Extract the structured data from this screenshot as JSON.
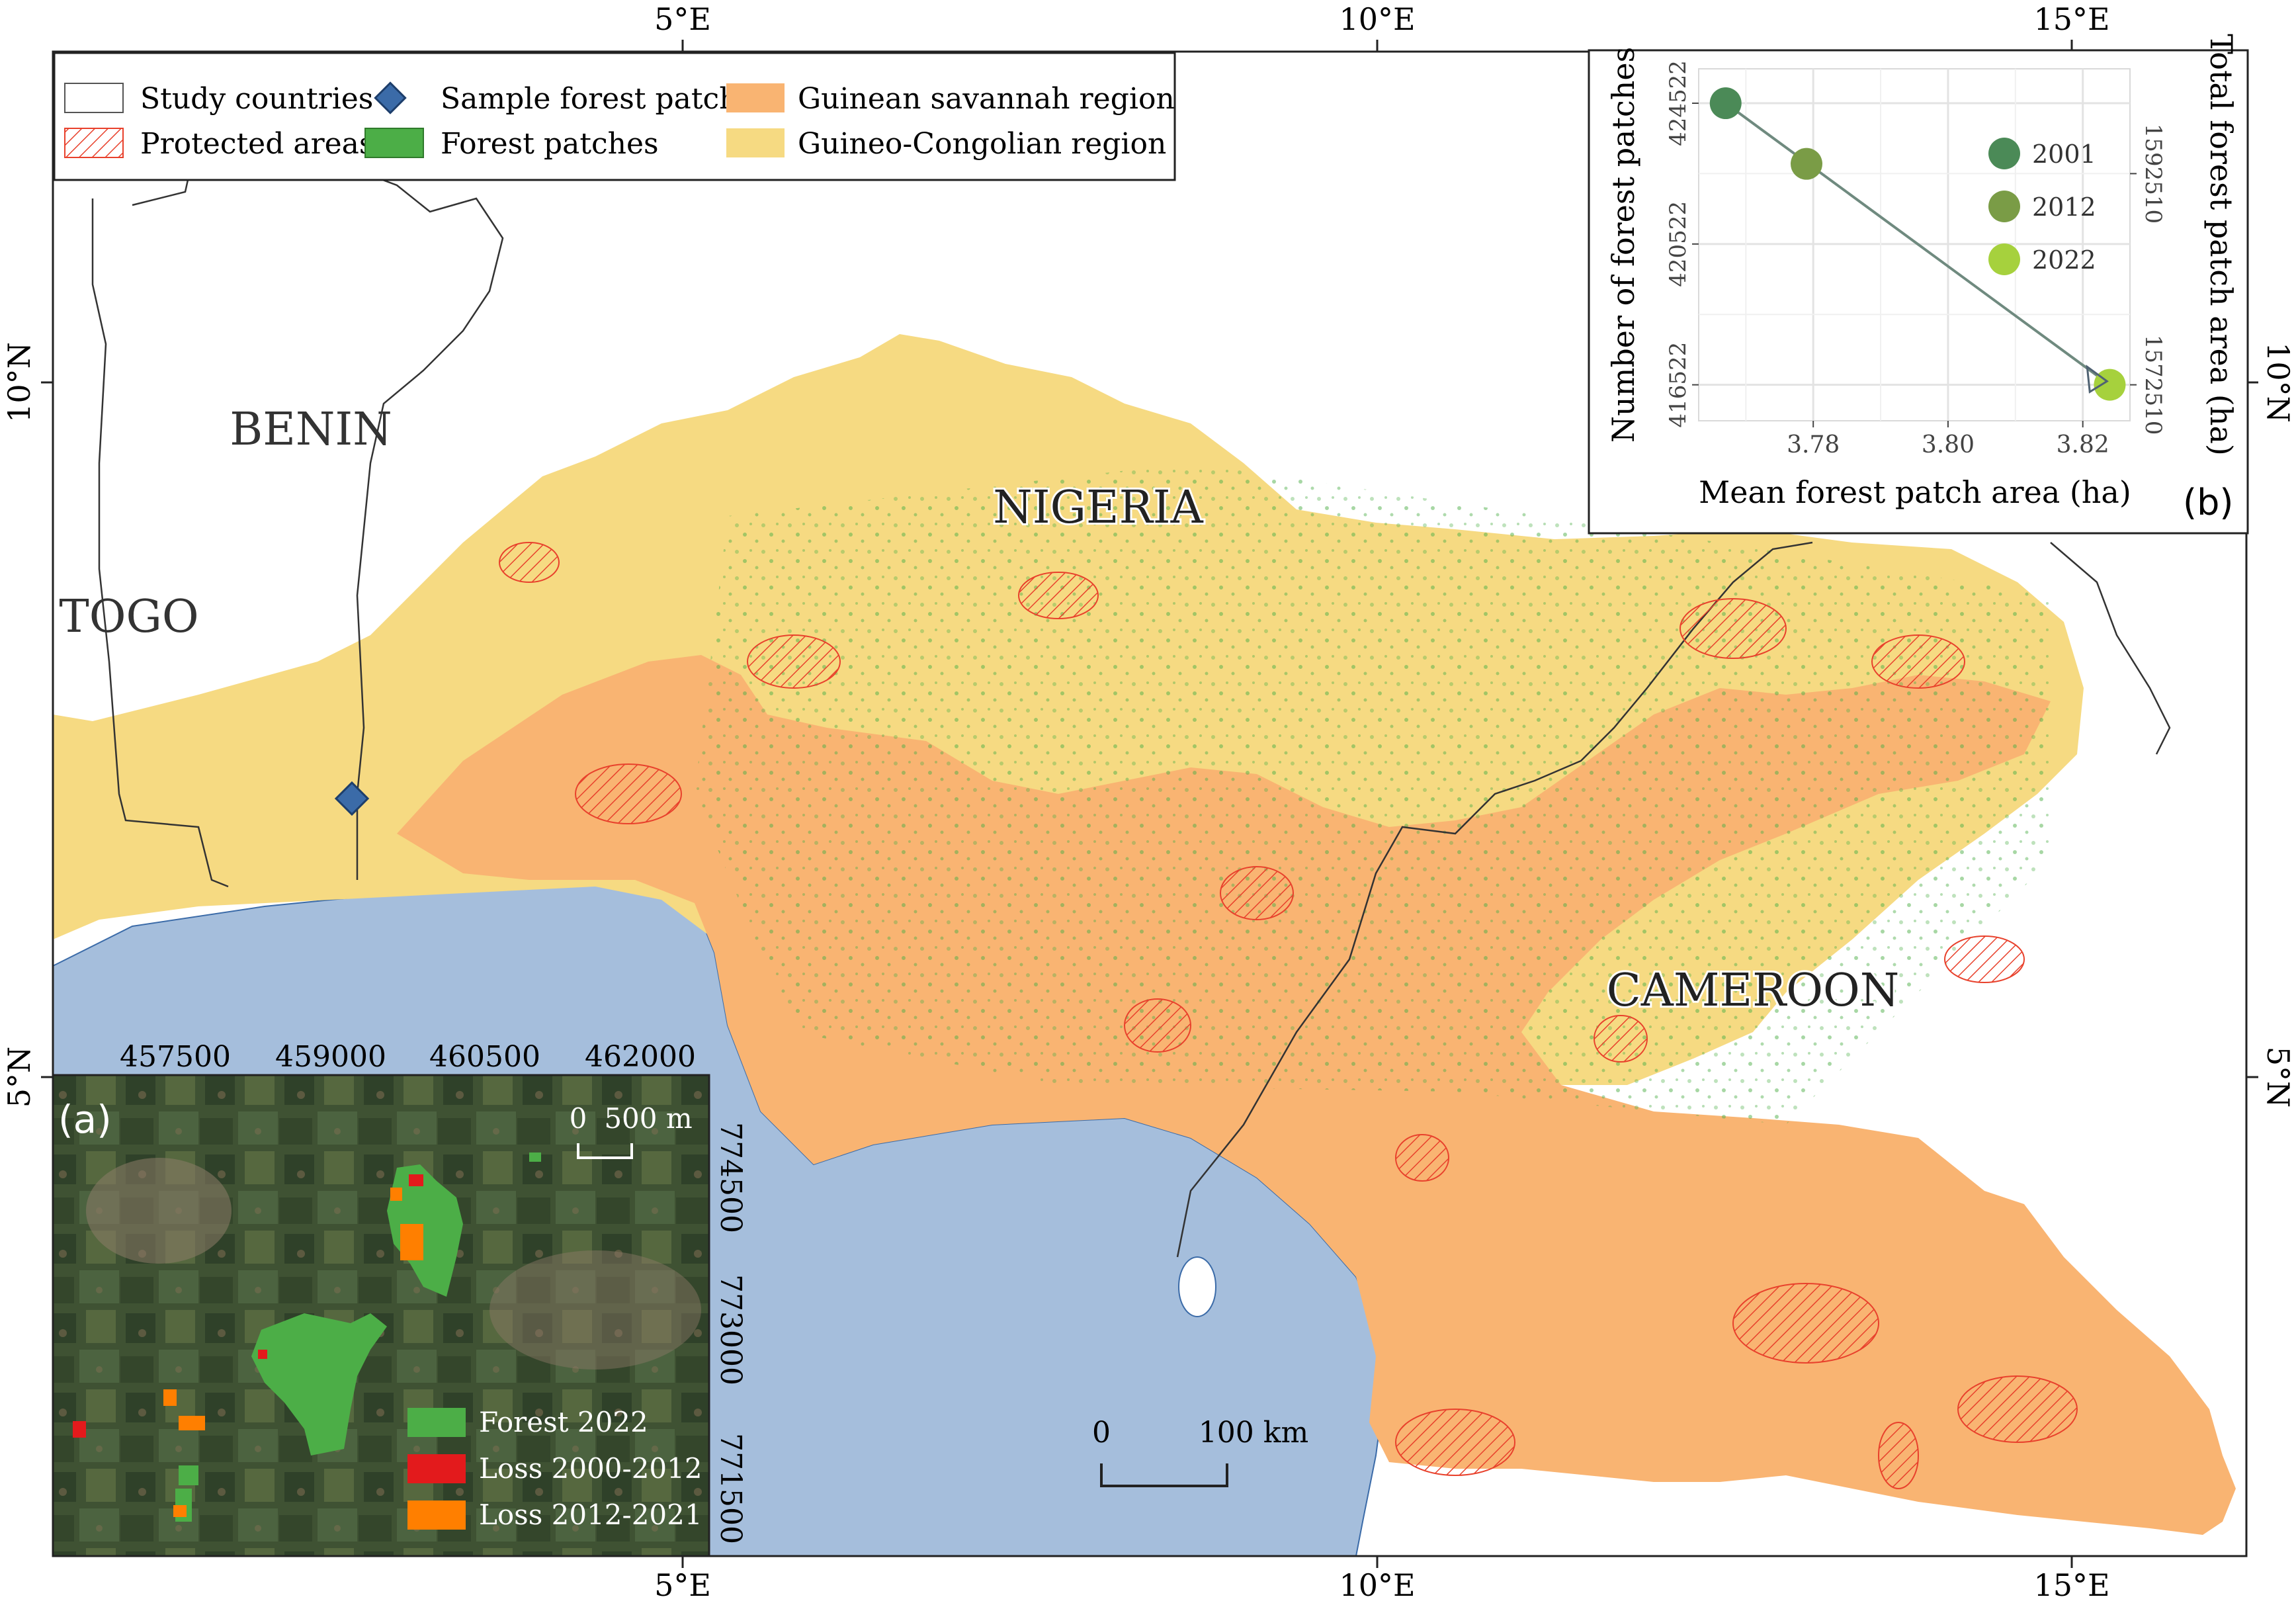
{
  "map": {
    "top_lon_labels": [
      "5°E",
      "10°E",
      "15°E"
    ],
    "bottom_lon_labels": [
      "5°E",
      "10°E",
      "15°E"
    ],
    "left_lat_labels": [
      "10°N",
      "5°N"
    ],
    "right_lat_labels": [
      "10°N",
      "5°N"
    ],
    "country_labels": {
      "benin": "BENIN",
      "togo": "TOGO",
      "nigeria": "NIGERIA",
      "cameroon": "CAMEROON"
    },
    "colors": {
      "ocean": "#a5bedc",
      "guinean_savannah": "#f9b472",
      "guineo_congolian": "#f6da82",
      "forest": "#4cae47",
      "protected_outline": "#e8412c",
      "sample_patch": "#3b6ba8",
      "loss_2000_2012": "#e31a1c",
      "loss_2012_2021": "#ff7f00"
    }
  },
  "legend": {
    "items": [
      {
        "label": "Study countries",
        "symbol": "outline-box"
      },
      {
        "label": "Protected areas",
        "symbol": "hatch-box"
      },
      {
        "label": "Sample forest patch",
        "symbol": "blue-diamond"
      },
      {
        "label": "Forest patches",
        "symbol": "green-box"
      },
      {
        "label": "Guinean savannah region",
        "symbol": "orange-box"
      },
      {
        "label": "Guineo-Congolian region",
        "symbol": "yellow-box"
      }
    ]
  },
  "scale_bar": {
    "label_start": "0",
    "label_end": "100 km"
  },
  "inset_a": {
    "panel_label": "(a)",
    "x_ticks": [
      "457500",
      "459000",
      "460500",
      "462000"
    ],
    "y_ticks": [
      "774500",
      "773000",
      "771500"
    ],
    "scale_label_start": "0",
    "scale_label_end": "500 m",
    "legend": [
      {
        "label": "Forest 2022",
        "color": "#4cae47"
      },
      {
        "label": "Loss 2000-2012",
        "color": "#e31a1c"
      },
      {
        "label": "Loss 2012-2021",
        "color": "#ff7f00"
      }
    ]
  },
  "chart_data": {
    "type": "scatter",
    "panel_label": "(b)",
    "xlabel": "Mean forest patch area (ha)",
    "ylabel": "Number of forest patches",
    "y2label": "Total forest patch area (ha)",
    "xlim": [
      3.763,
      3.827
    ],
    "ylim": [
      415500,
      425500
    ],
    "x_ticks": [
      3.78,
      3.8,
      3.82
    ],
    "x_tick_labels": [
      "3.78",
      "3.80",
      "3.82"
    ],
    "y_ticks": [
      416522,
      420522,
      424522
    ],
    "y2_ticks": [
      "1572510",
      "1592510"
    ],
    "y2_tick_positions": [
      416522,
      422522
    ],
    "grid": true,
    "legend_position": "right",
    "series": [
      {
        "name": "2001",
        "x": 3.767,
        "y": 424522,
        "color": "#4b8a57"
      },
      {
        "name": "2012",
        "x": 3.779,
        "y": 422800,
        "color": "#7a9c46"
      },
      {
        "name": "2022",
        "x": 3.824,
        "y": 416522,
        "color": "#a6d13d"
      }
    ],
    "trend_line": [
      [
        3.767,
        424522
      ],
      [
        3.823,
        416660
      ]
    ]
  }
}
